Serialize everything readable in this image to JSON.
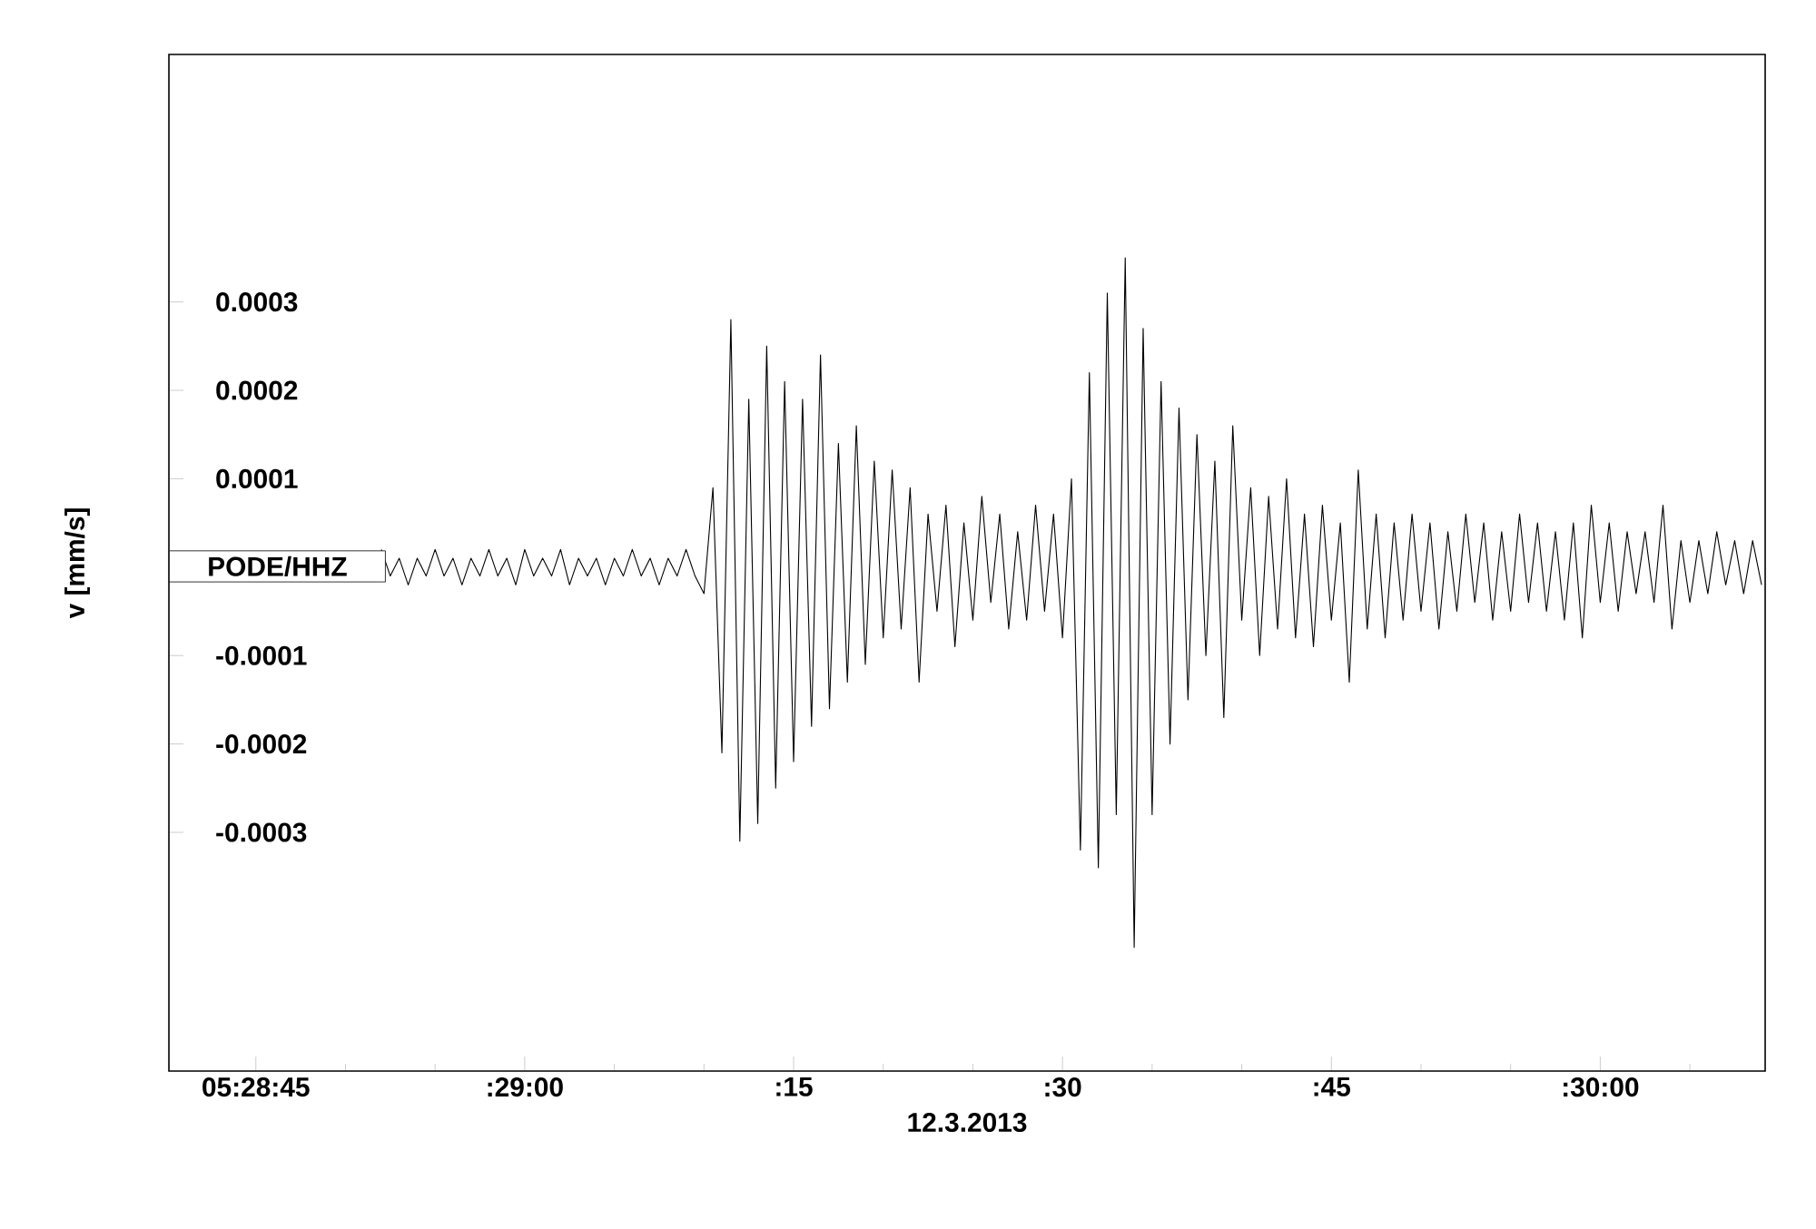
{
  "chart_data": {
    "type": "line",
    "xlabel": "12.3.2013",
    "ylabel": "v [mm/s]",
    "color": "#000000",
    "ylim": [
      -0.00057,
      0.00058
    ],
    "yticks": [
      0.0003,
      0.0002,
      0.0001,
      -0.0001,
      -0.0002,
      -0.0003
    ],
    "annotations": [
      "PODE/HHZ"
    ],
    "categories": [
      null,
      null,
      null,
      null,
      null,
      null,
      null,
      null,
      "05:28:45",
      null,
      null,
      null,
      null,
      null,
      null,
      null,
      null,
      null,
      null,
      null,
      null,
      null,
      null,
      null,
      null,
      null,
      null,
      null,
      null,
      null,
      null,
      null,
      null,
      null,
      null,
      null,
      null,
      null,
      ":29:00",
      null,
      null,
      null,
      null,
      null,
      null,
      null,
      null,
      null,
      null,
      null,
      null,
      null,
      null,
      null,
      null,
      null,
      null,
      null,
      null,
      null,
      null,
      null,
      null,
      null,
      null,
      null,
      null,
      null,
      ":15",
      null,
      null,
      null,
      null,
      null,
      null,
      null,
      null,
      null,
      null,
      null,
      null,
      null,
      null,
      null,
      null,
      null,
      null,
      null,
      null,
      null,
      null,
      null,
      null,
      null,
      null,
      null,
      null,
      null,
      ":30",
      null,
      null,
      null,
      null,
      null,
      null,
      null,
      null,
      null,
      null,
      null,
      null,
      null,
      null,
      null,
      null,
      null,
      null,
      null,
      null,
      null,
      null,
      null,
      null,
      null,
      null,
      null,
      null,
      null,
      ":45",
      null,
      null,
      null,
      null,
      null,
      null,
      null,
      null,
      null,
      null,
      null,
      null,
      null,
      null,
      null,
      null,
      null,
      null,
      null,
      null,
      null,
      null,
      null,
      null,
      null,
      null,
      null,
      null,
      null,
      ":30:00",
      null,
      null,
      null,
      null,
      null,
      null,
      null,
      null,
      null,
      null,
      null,
      null,
      null,
      null,
      null,
      null,
      null,
      null
    ],
    "values": [
      null,
      null,
      null,
      null,
      null,
      null,
      null,
      null,
      null,
      null,
      null,
      null,
      null,
      null,
      null,
      null,
      null,
      null,
      null,
      null,
      null,
      null,
      2e-05,
      -1e-05,
      1e-05,
      -2e-05,
      1e-05,
      -1e-05,
      2e-05,
      -1e-05,
      1e-05,
      -2e-05,
      1e-05,
      -1e-05,
      2e-05,
      -1e-05,
      1e-05,
      -2e-05,
      2e-05,
      -1e-05,
      1e-05,
      -1e-05,
      2e-05,
      -2e-05,
      1e-05,
      -1e-05,
      1e-05,
      -2e-05,
      1e-05,
      -1e-05,
      2e-05,
      -1e-05,
      1e-05,
      -2e-05,
      1e-05,
      -1e-05,
      2e-05,
      -1e-05,
      -3e-05,
      9e-05,
      -0.00021,
      0.00028,
      -0.00031,
      0.00019,
      -0.00029,
      0.00025,
      -0.00025,
      0.00021,
      -0.00022,
      0.00019,
      -0.00018,
      0.00024,
      -0.00016,
      0.00014,
      -0.00013,
      0.00016,
      -0.00011,
      0.00012,
      -8e-05,
      0.00011,
      -7e-05,
      9e-05,
      -0.00013,
      6e-05,
      -5e-05,
      7e-05,
      -9e-05,
      5e-05,
      -6e-05,
      8e-05,
      -4e-05,
      6e-05,
      -7e-05,
      4e-05,
      -6e-05,
      7e-05,
      -5e-05,
      6e-05,
      -8e-05,
      0.0001,
      -0.00032,
      0.00022,
      -0.00034,
      0.00031,
      -0.00028,
      0.00035,
      -0.00043,
      0.00027,
      -0.00028,
      0.00021,
      -0.0002,
      0.00018,
      -0.00015,
      0.00015,
      -0.0001,
      0.00012,
      -0.00017,
      0.00016,
      -6e-05,
      9e-05,
      -0.0001,
      8e-05,
      -7e-05,
      0.0001,
      -8e-05,
      6e-05,
      -9e-05,
      7e-05,
      -6e-05,
      5e-05,
      -0.00013,
      0.00011,
      -7e-05,
      6e-05,
      -8e-05,
      5e-05,
      -6e-05,
      6e-05,
      -5e-05,
      5e-05,
      -7e-05,
      4e-05,
      -5e-05,
      6e-05,
      -4e-05,
      5e-05,
      -6e-05,
      4e-05,
      -5e-05,
      6e-05,
      -4e-05,
      5e-05,
      -5e-05,
      4e-05,
      -6e-05,
      5e-05,
      -8e-05,
      7e-05,
      -4e-05,
      5e-05,
      -5e-05,
      4e-05,
      -3e-05,
      4e-05,
      -4e-05,
      7e-05,
      -7e-05,
      3e-05,
      -4e-05,
      3e-05,
      -3e-05,
      4e-05,
      -2e-05,
      3e-05,
      -3e-05,
      3e-05,
      -2e-05
    ]
  }
}
